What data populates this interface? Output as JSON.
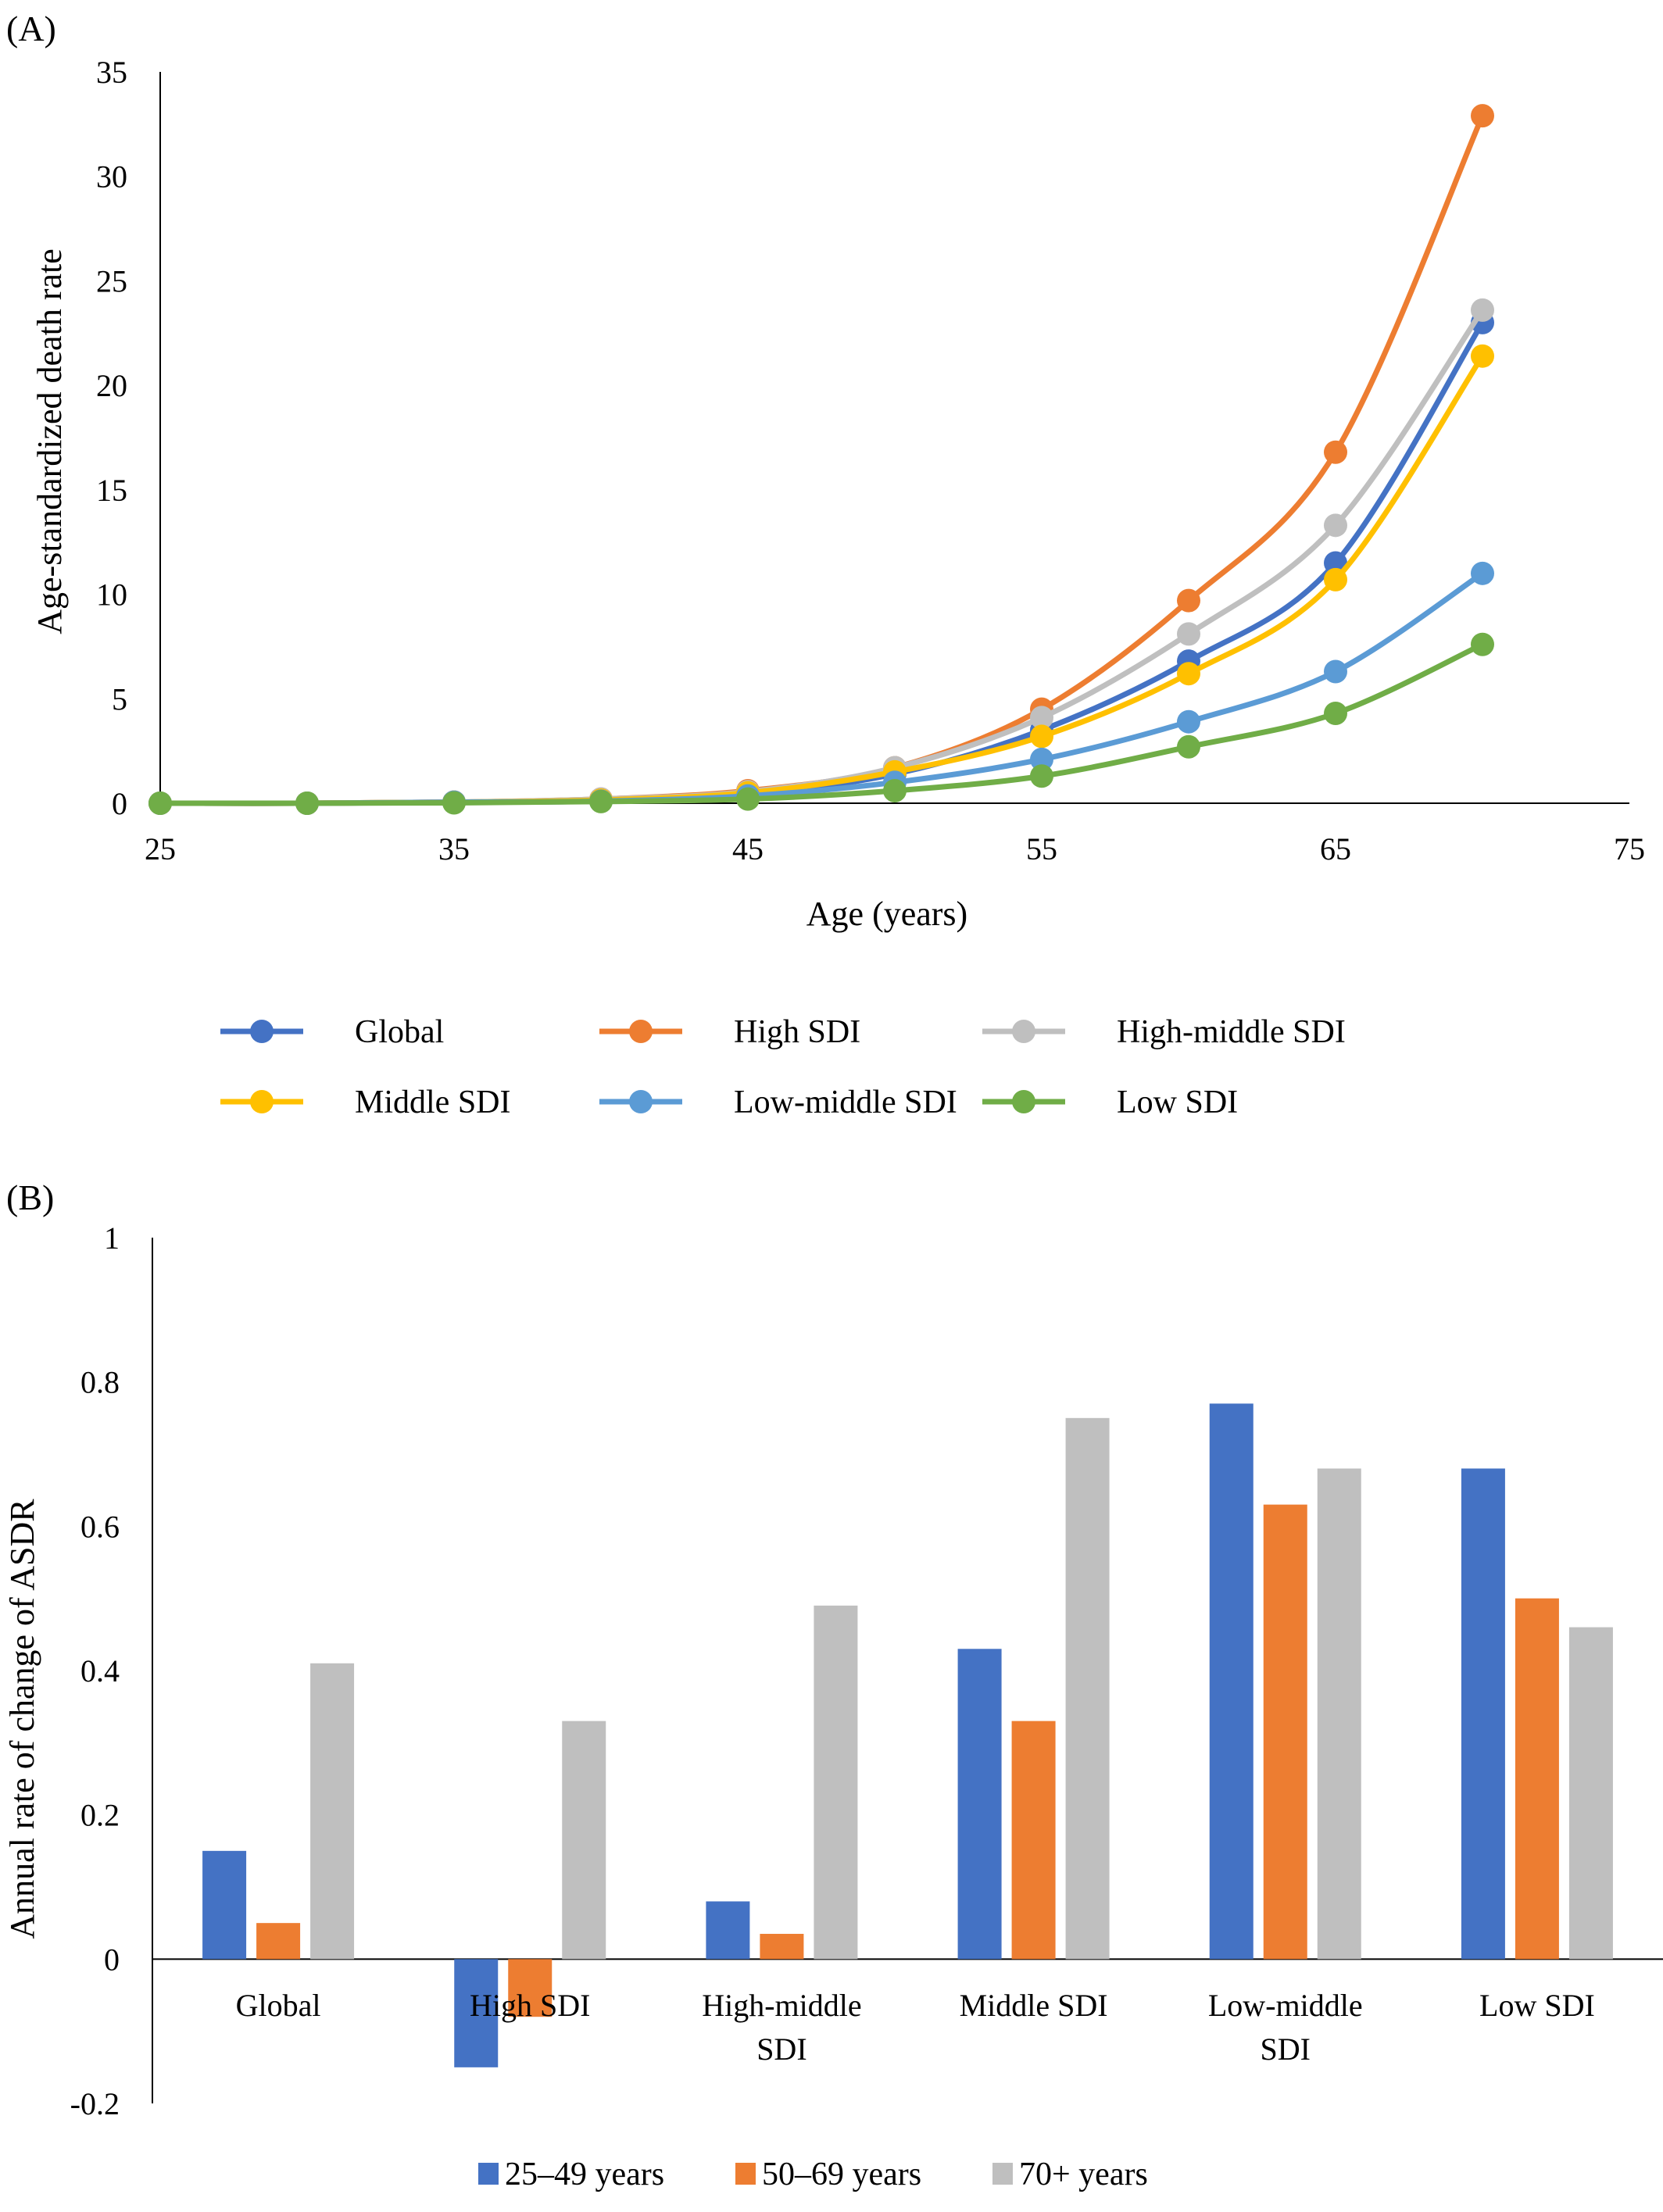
{
  "chart_data": [
    {
      "panel": "(A)",
      "type": "line",
      "xlabel": "Age (years)",
      "ylabel": "Age-standardized death rate",
      "xlim": [
        25,
        75
      ],
      "ylim": [
        0,
        35
      ],
      "x_ticks": [
        "25",
        "35",
        "45",
        "55",
        "65",
        "75"
      ],
      "y_ticks": [
        "0",
        "5",
        "10",
        "15",
        "20",
        "25",
        "30",
        "35"
      ],
      "x": [
        25,
        30,
        35,
        40,
        45,
        50,
        55,
        60,
        65,
        70
      ],
      "legend_position": "bottom",
      "grid": false,
      "series": [
        {
          "name": "Global",
          "color": "#4472C4",
          "values": [
            0.0,
            0.0,
            0.05,
            0.15,
            0.45,
            1.4,
            3.5,
            6.8,
            11.5,
            23.0
          ]
        },
        {
          "name": "High SDI",
          "color": "#ED7D31",
          "values": [
            0.0,
            0.0,
            0.05,
            0.2,
            0.6,
            1.7,
            4.5,
            9.7,
            16.8,
            32.9
          ]
        },
        {
          "name": "High-middle SDI",
          "color": "#BFBFBF",
          "values": [
            0.0,
            0.0,
            0.05,
            0.2,
            0.55,
            1.7,
            4.1,
            8.1,
            13.3,
            23.6
          ]
        },
        {
          "name": "Middle SDI",
          "color": "#FFC000",
          "values": [
            0.0,
            0.0,
            0.05,
            0.15,
            0.5,
            1.5,
            3.2,
            6.2,
            10.7,
            21.4
          ]
        },
        {
          "name": "Low-middle SDI",
          "color": "#5B9BD5",
          "values": [
            0.0,
            0.0,
            0.05,
            0.1,
            0.35,
            1.0,
            2.1,
            3.9,
            6.3,
            11.0
          ]
        },
        {
          "name": "Low SDI",
          "color": "#70AD47",
          "values": [
            0.0,
            0.0,
            0.02,
            0.08,
            0.2,
            0.6,
            1.3,
            2.7,
            4.3,
            7.6
          ]
        }
      ]
    },
    {
      "panel": "(B)",
      "type": "bar",
      "ylabel": "Annual rate of change of ASDR",
      "ylim": [
        -0.2,
        1
      ],
      "y_ticks": [
        "1",
        "0.8",
        "0.6",
        "0.4",
        "0.2",
        "0",
        "-0.2"
      ],
      "categories": [
        [
          "Global"
        ],
        [
          "High SDI"
        ],
        [
          "High-middle",
          "SDI"
        ],
        [
          "Middle SDI"
        ],
        [
          "Low-middle",
          "SDI"
        ],
        [
          "Low SDI"
        ]
      ],
      "legend_position": "bottom",
      "grid": false,
      "series": [
        {
          "name": "25‒49 years",
          "color": "#4472C4",
          "values": [
            0.15,
            -0.15,
            0.08,
            0.43,
            0.77,
            0.68
          ]
        },
        {
          "name": "50‒69 years",
          "color": "#ED7D31",
          "values": [
            0.05,
            -0.08,
            0.035,
            0.33,
            0.63,
            0.5
          ]
        },
        {
          "name": "70+ years",
          "color": "#BFBFBF",
          "values": [
            0.41,
            0.33,
            0.49,
            0.75,
            0.68,
            0.46
          ]
        }
      ]
    }
  ]
}
